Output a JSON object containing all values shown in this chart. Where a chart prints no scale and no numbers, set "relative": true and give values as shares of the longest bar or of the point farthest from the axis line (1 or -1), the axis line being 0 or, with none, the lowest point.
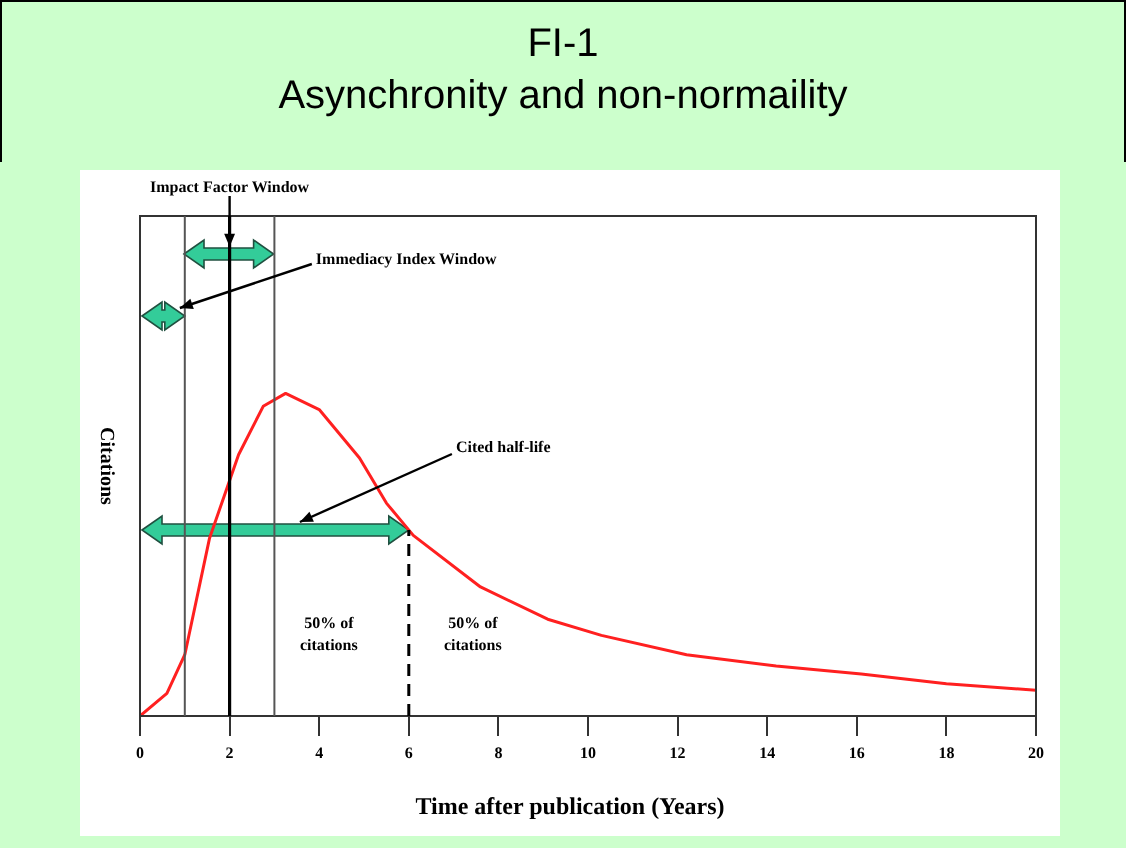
{
  "chart_data": {
    "type": "line",
    "title": "FI-1",
    "subtitle": "Asynchronity and non-normaility",
    "xlabel": "Time after publication (Years)",
    "ylabel": "Citations",
    "relative": true,
    "x": [
      0,
      0.6,
      1.0,
      1.55,
      2.2,
      2.75,
      3.25,
      4.0,
      4.9,
      5.5,
      6.1,
      7.6,
      9.1,
      10.3,
      12.2,
      14.2,
      16.1,
      18,
      20
    ],
    "series": [
      {
        "color": "#ff2020",
        "values": [
          0,
          0.07,
          0.19,
          0.55,
          0.81,
          0.96,
          1,
          0.95,
          0.8,
          0.66,
          0.56,
          0.4,
          0.3,
          0.25,
          0.19,
          0.155,
          0.13,
          0.1,
          0.08
        ]
      }
    ],
    "xlim": [
      0,
      20
    ],
    "xticks": [
      0,
      2,
      4,
      6,
      8,
      10,
      12,
      14,
      16,
      18,
      20
    ],
    "ref_lines": [
      {
        "axis": "x",
        "value": 1,
        "color": "#555555"
      },
      {
        "axis": "x",
        "value": 2,
        "color": "#000000"
      },
      {
        "axis": "x",
        "value": 3,
        "color": "#555555"
      },
      {
        "axis": "x",
        "value": 6,
        "color": "#000000",
        "line_style": "dashed"
      }
    ],
    "annotations": [
      {
        "text": "Impact Factor Window",
        "x": 2,
        "y": 1.43
      },
      {
        "text": "Immediacy Index Window",
        "x": 0.8,
        "y": 1.24
      },
      "Cited half-life",
      "50% of citations",
      "50% of citations"
    ],
    "legend": false,
    "grid": false,
    "marker": "none",
    "line_style": "solid"
  }
}
